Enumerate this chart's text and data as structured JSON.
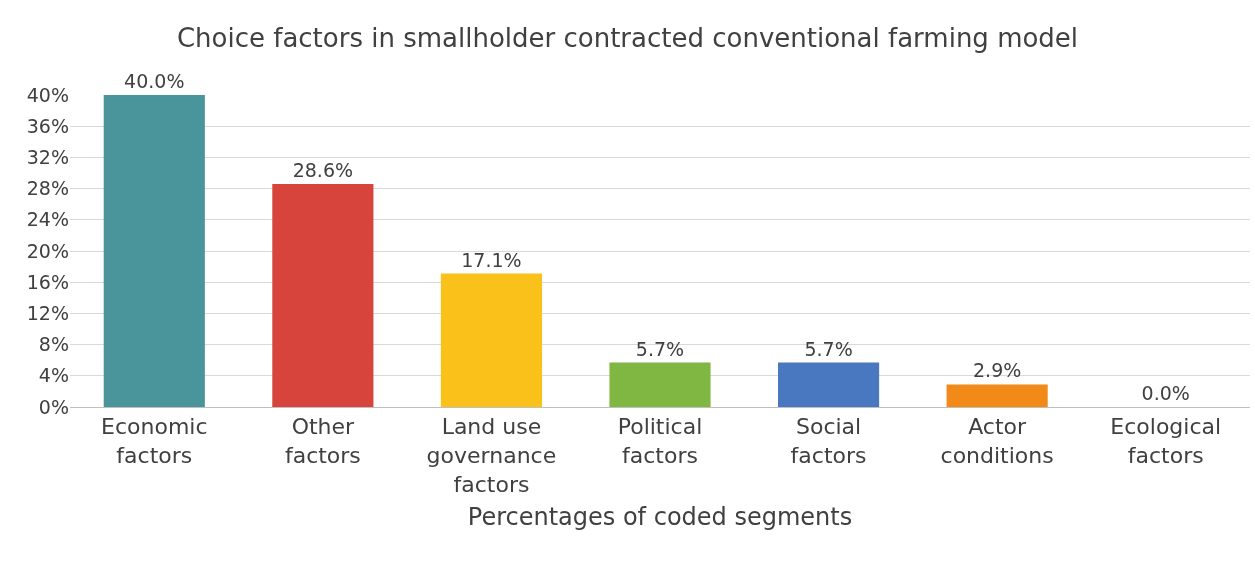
{
  "chart_data": {
    "type": "bar",
    "title": "Choice factors in smallholder contracted conventional farming model",
    "xlabel": "Percentages of coded segments",
    "categories": [
      "Economic factors",
      "Other factors",
      "Land use governance factors",
      "Political factors",
      "Social factors",
      "Actor conditions",
      "Ecological factors"
    ],
    "values": [
      40.0,
      28.6,
      17.1,
      5.7,
      5.7,
      2.9,
      0.0
    ],
    "colors": [
      "#4a949b",
      "#d6443b",
      "#fbc11b",
      "#80b642",
      "#4a78c0",
      "#f28a1a",
      "#a6a6a6"
    ],
    "value_labels": [
      "40.0%",
      "28.6%",
      "17.1%",
      "5.7%",
      "5.7%",
      "2.9%",
      "0.0%"
    ],
    "ylim": [
      0,
      40
    ],
    "yticks": [
      {
        "value": 0,
        "label": "0%"
      },
      {
        "value": 4,
        "label": "4%"
      },
      {
        "value": 8,
        "label": "8%"
      },
      {
        "value": 12,
        "label": "12%"
      },
      {
        "value": 16,
        "label": "16%"
      },
      {
        "value": 20,
        "label": "20%"
      },
      {
        "value": 24,
        "label": "24%"
      },
      {
        "value": 28,
        "label": "28%"
      },
      {
        "value": 32,
        "label": "32%"
      },
      {
        "value": 36,
        "label": "36%"
      },
      {
        "value": 40,
        "label": "40%"
      }
    ],
    "grid": "y",
    "legend": false
  }
}
